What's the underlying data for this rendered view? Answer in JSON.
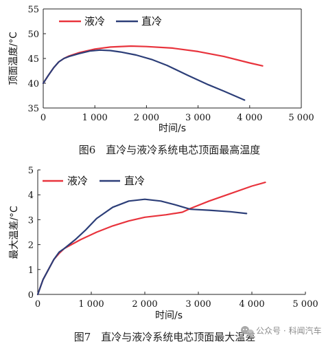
{
  "watermark": {
    "icon": "wechat-official-account-icon",
    "text": "公众号 · 科闻汽车"
  },
  "chart_data": [
    {
      "type": "line",
      "title": "",
      "caption": "图6　直冷与液冷系统电芯顶面最高温度",
      "xlabel": "时间/s",
      "ylabel": "顶面温度/°C",
      "xlim": [
        0,
        5000
      ],
      "ylim": [
        35,
        55
      ],
      "xticks": [
        0,
        1000,
        2000,
        3000,
        4000,
        5000
      ],
      "xtick_labels": [
        "0",
        "1 000",
        "2 000",
        "3 000",
        "4 000",
        "5 000"
      ],
      "yticks": [
        35,
        40,
        45,
        50,
        55
      ],
      "ytick_labels": [
        "35",
        "40",
        "45",
        "50",
        "55"
      ],
      "grid": false,
      "legend_position": "top-left",
      "series": [
        {
          "name": "液冷",
          "color": "#e8333c",
          "x": [
            0,
            100,
            200,
            300,
            400,
            500,
            700,
            1000,
            1300,
            1700,
            2000,
            2500,
            3000,
            3500,
            4000,
            4250
          ],
          "y": [
            40.0,
            41.6,
            43.1,
            44.3,
            45.0,
            45.5,
            46.2,
            46.9,
            47.3,
            47.5,
            47.4,
            47.1,
            46.4,
            45.4,
            44.1,
            43.5
          ]
        },
        {
          "name": "直冷",
          "color": "#2c3e78",
          "x": [
            0,
            100,
            200,
            300,
            400,
            500,
            700,
            900,
            1100,
            1300,
            1500,
            1800,
            2100,
            2400,
            2800,
            3200,
            3500,
            3900
          ],
          "y": [
            40.0,
            41.6,
            43.1,
            44.3,
            45.0,
            45.4,
            46.0,
            46.5,
            46.7,
            46.6,
            46.3,
            45.7,
            44.8,
            43.6,
            41.6,
            39.7,
            38.4,
            36.6
          ]
        }
      ]
    },
    {
      "type": "line",
      "title": "",
      "caption": "图7　直冷与液冷系统电芯顶面最大温差",
      "xlabel": "时间/s",
      "ylabel": "最大温差/°C",
      "xlim": [
        0,
        5000
      ],
      "ylim": [
        0,
        5
      ],
      "xticks": [
        0,
        1000,
        2000,
        3000,
        4000,
        5000
      ],
      "xtick_labels": [
        "0",
        "1 000",
        "2 000",
        "3 000",
        "4 000",
        "5 000"
      ],
      "yticks": [
        0,
        1,
        2,
        3,
        4,
        5
      ],
      "ytick_labels": [
        "0",
        "1",
        "2",
        "3",
        "4",
        "5"
      ],
      "grid": false,
      "legend_position": "top-left",
      "series": [
        {
          "name": "液冷",
          "color": "#e8333c",
          "x": [
            0,
            100,
            200,
            300,
            400,
            500,
            800,
            1100,
            1400,
            1700,
            2000,
            2400,
            2700,
            2850,
            3200,
            3600,
            4000,
            4250
          ],
          "y": [
            0,
            0.6,
            1.0,
            1.4,
            1.65,
            1.85,
            2.2,
            2.5,
            2.75,
            2.95,
            3.1,
            3.2,
            3.3,
            3.45,
            3.75,
            4.05,
            4.35,
            4.5
          ]
        },
        {
          "name": "直冷",
          "color": "#2c3e78",
          "x": [
            0,
            100,
            200,
            300,
            400,
            500,
            700,
            900,
            1100,
            1400,
            1700,
            2000,
            2300,
            2600,
            2850,
            3200,
            3600,
            3900
          ],
          "y": [
            0,
            0.6,
            1.0,
            1.4,
            1.7,
            1.85,
            2.2,
            2.6,
            3.05,
            3.5,
            3.75,
            3.82,
            3.75,
            3.58,
            3.42,
            3.38,
            3.32,
            3.25
          ]
        }
      ]
    }
  ]
}
